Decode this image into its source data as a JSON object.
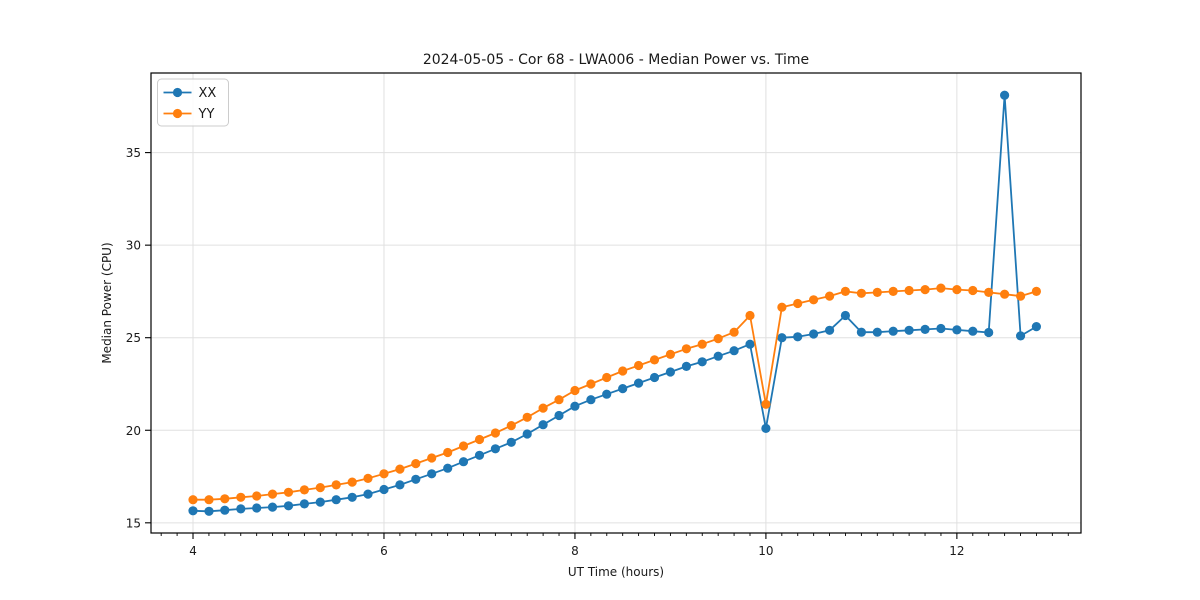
{
  "figure": {
    "title": "2024-05-05 - Cor 68 - LWA006 - Median Power vs. Time"
  },
  "chart_data": {
    "type": "line",
    "title": "2024-05-05 - Cor 68 - LWA006 - Median Power vs. Time",
    "xlabel": "UT Time (hours)",
    "ylabel": "Median Power (CPU)",
    "xlim": [
      3.56,
      13.3
    ],
    "ylim": [
      14.45,
      39.3
    ],
    "x_ticks": [
      4,
      6,
      8,
      10,
      12
    ],
    "y_ticks": [
      15,
      20,
      25,
      30,
      35
    ],
    "x_minor_interval": 0.16667,
    "grid": true,
    "grid_color": "#e0e0e0",
    "spine_color": "#000000",
    "legend_position": "upper-left",
    "marker": "circle",
    "x": [
      4.0,
      4.167,
      4.333,
      4.5,
      4.667,
      4.833,
      5.0,
      5.167,
      5.333,
      5.5,
      5.667,
      5.833,
      6.0,
      6.167,
      6.333,
      6.5,
      6.667,
      6.833,
      7.0,
      7.167,
      7.333,
      7.5,
      7.667,
      7.833,
      8.0,
      8.167,
      8.333,
      8.5,
      8.667,
      8.833,
      9.0,
      9.167,
      9.333,
      9.5,
      9.667,
      9.833,
      10.0,
      10.167,
      10.333,
      10.5,
      10.667,
      10.833,
      11.0,
      11.167,
      11.333,
      11.5,
      11.667,
      11.833,
      12.0,
      12.167,
      12.333,
      12.5,
      12.667,
      12.833
    ],
    "series": [
      {
        "name": "XX",
        "color": "#1f77b4",
        "values": [
          15.65,
          15.62,
          15.68,
          15.75,
          15.8,
          15.85,
          15.92,
          16.02,
          16.12,
          16.25,
          16.38,
          16.55,
          16.8,
          17.05,
          17.35,
          17.65,
          17.95,
          18.3,
          18.65,
          19.0,
          19.35,
          19.8,
          20.3,
          20.8,
          21.3,
          21.65,
          21.95,
          22.25,
          22.55,
          22.85,
          23.15,
          23.45,
          23.7,
          24.0,
          24.3,
          24.65,
          20.1,
          25.0,
          25.05,
          25.2,
          25.4,
          26.2,
          25.3,
          25.3,
          25.35,
          25.4,
          25.45,
          25.5,
          25.42,
          25.35,
          25.28,
          38.1,
          25.1,
          25.6
        ]
      },
      {
        "name": "YY",
        "color": "#ff7f0e",
        "values": [
          16.25,
          16.25,
          16.3,
          16.38,
          16.45,
          16.55,
          16.65,
          16.78,
          16.9,
          17.05,
          17.2,
          17.4,
          17.65,
          17.9,
          18.2,
          18.5,
          18.8,
          19.15,
          19.5,
          19.85,
          20.25,
          20.7,
          21.2,
          21.65,
          22.15,
          22.5,
          22.85,
          23.2,
          23.5,
          23.8,
          24.1,
          24.4,
          24.65,
          24.95,
          25.3,
          26.2,
          21.4,
          26.65,
          26.85,
          27.05,
          27.25,
          27.5,
          27.4,
          27.45,
          27.5,
          27.55,
          27.6,
          27.68,
          27.6,
          27.55,
          27.45,
          27.35,
          27.25,
          27.5
        ]
      }
    ]
  }
}
